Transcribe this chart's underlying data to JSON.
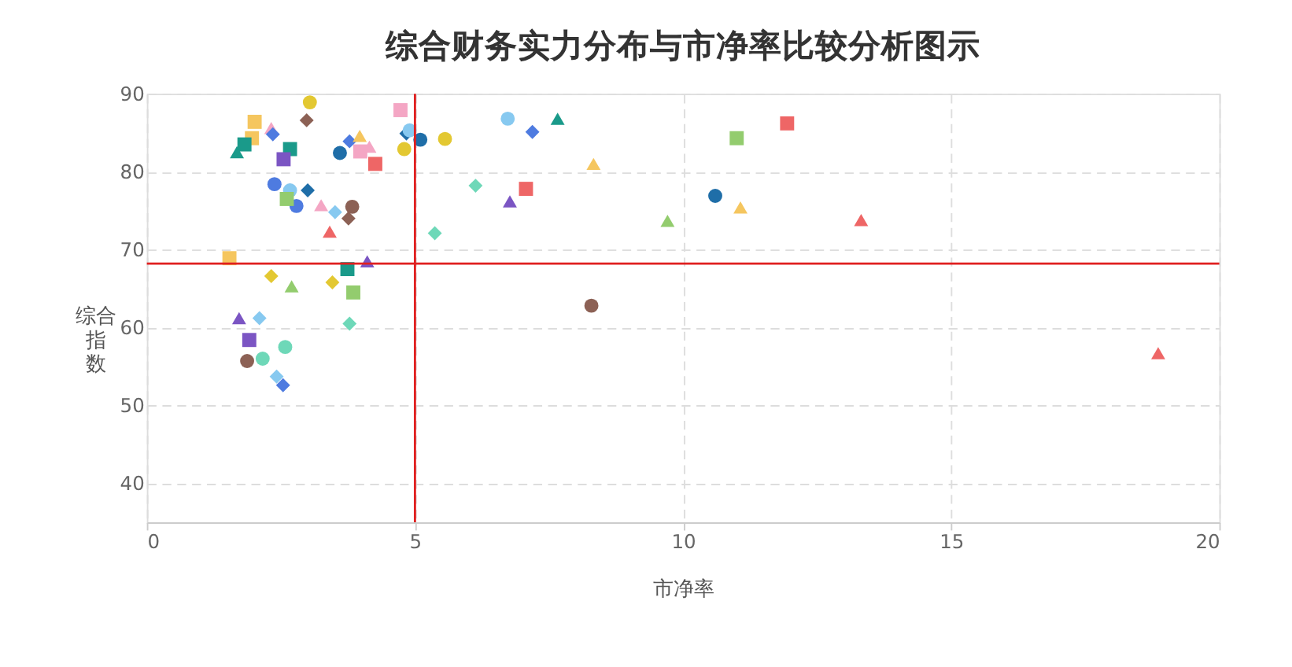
{
  "chart_data": {
    "type": "scatter",
    "title": "综合财务实力分布与市净率比较分析图示",
    "xlabel": "市净率",
    "ylabel": "综合指数",
    "xlim": [
      0,
      20
    ],
    "xticks": [
      0,
      5,
      10,
      15,
      20
    ],
    "ylim": [
      35,
      90
    ],
    "yticks": [
      40,
      50,
      60,
      70,
      80,
      90
    ],
    "grid": true,
    "ref_lines": [
      {
        "axis": "x",
        "value": 5,
        "color": "#e02020"
      },
      {
        "axis": "y",
        "value": 68.2,
        "color": "#e02020"
      }
    ],
    "series": [
      {
        "color": "#f5c65f",
        "marker": "square",
        "x": [
          2.01,
          1.96,
          1.54
        ],
        "values": [
          86.4,
          84.3,
          68.9
        ]
      },
      {
        "color": "#e3c832",
        "marker": "circle",
        "x": [
          3.04,
          4.8,
          5.56
        ],
        "values": [
          88.9,
          82.9,
          84.2
        ]
      },
      {
        "color": "#8c6155",
        "marker": "diamond",
        "x": [
          2.98,
          3.76
        ],
        "values": [
          86.6,
          74.0
        ]
      },
      {
        "color": "#8c6155",
        "marker": "circle",
        "x": [
          3.83,
          1.87,
          8.29
        ],
        "values": [
          75.5,
          55.7,
          62.8
        ]
      },
      {
        "color": "#f4a6c4",
        "marker": "triangle",
        "x": [
          2.32,
          4.15,
          3.25
        ],
        "values": [
          85.6,
          83.2,
          75.7
        ]
      },
      {
        "color": "#f4a6c4",
        "marker": "square",
        "x": [
          4.73,
          3.98
        ],
        "values": [
          87.9,
          82.6
        ]
      },
      {
        "color": "#1a9a8a",
        "marker": "square",
        "x": [
          1.82,
          2.67,
          3.74
        ],
        "values": [
          83.5,
          82.9,
          67.5
        ]
      },
      {
        "color": "#1a9a8a",
        "marker": "triangle",
        "x": [
          1.68,
          7.66
        ],
        "values": [
          82.5,
          86.8
        ]
      },
      {
        "color": "#7b55c3",
        "marker": "square",
        "x": [
          2.55,
          1.91
        ],
        "values": [
          81.6,
          58.4
        ]
      },
      {
        "color": "#7b55c3",
        "marker": "triangle",
        "x": [
          4.11,
          1.72,
          6.77
        ],
        "values": [
          68.5,
          61.2,
          76.2
        ]
      },
      {
        "color": "#1f6ea8",
        "marker": "circle",
        "x": [
          3.6,
          5.1,
          10.6
        ],
        "values": [
          82.4,
          84.1,
          76.9
        ]
      },
      {
        "color": "#1f6ea8",
        "marker": "diamond",
        "x": [
          4.84,
          3.0
        ],
        "values": [
          84.9,
          77.6
        ]
      },
      {
        "color": "#4e7be0",
        "marker": "diamond",
        "x": [
          2.35,
          3.78,
          7.19,
          2.54
        ],
        "values": [
          84.8,
          83.9,
          85.1,
          52.6
        ]
      },
      {
        "color": "#4e7be0",
        "marker": "circle",
        "x": [
          2.38,
          2.79
        ],
        "values": [
          78.4,
          75.6
        ]
      },
      {
        "color": "#f5c65f",
        "marker": "triangle",
        "x": [
          3.97,
          8.33,
          11.07
        ],
        "values": [
          84.6,
          81.0,
          75.4
        ]
      },
      {
        "color": "#ee6666",
        "marker": "square",
        "x": [
          4.26,
          7.07,
          11.94
        ],
        "values": [
          81.0,
          77.8,
          86.2
        ]
      },
      {
        "color": "#ee6666",
        "marker": "triangle",
        "x": [
          3.41,
          13.32,
          18.86
        ],
        "values": [
          72.3,
          73.8,
          56.7
        ]
      },
      {
        "color": "#87c9f0",
        "marker": "circle",
        "x": [
          4.9,
          2.67,
          6.73
        ],
        "values": [
          85.3,
          77.6,
          86.8
        ]
      },
      {
        "color": "#87c9f0",
        "marker": "diamond",
        "x": [
          3.51,
          2.1,
          2.42
        ],
        "values": [
          74.8,
          61.2,
          53.7
        ]
      },
      {
        "color": "#93cc6e",
        "marker": "square",
        "x": [
          2.61,
          3.85,
          11.0
        ],
        "values": [
          76.5,
          64.5,
          84.3
        ]
      },
      {
        "color": "#93cc6e",
        "marker": "triangle",
        "x": [
          2.7,
          9.71
        ],
        "values": [
          65.3,
          73.7
        ]
      },
      {
        "color": "#6ed8b8",
        "marker": "diamond",
        "x": [
          5.37,
          6.13,
          3.78
        ],
        "values": [
          72.1,
          78.2,
          60.5
        ]
      },
      {
        "color": "#6ed8b8",
        "marker": "circle",
        "x": [
          2.58,
          2.16
        ],
        "values": [
          57.5,
          56.0
        ]
      },
      {
        "color": "#e3c832",
        "marker": "diamond",
        "x": [
          2.32,
          3.46
        ],
        "values": [
          66.6,
          65.8
        ]
      }
    ]
  }
}
